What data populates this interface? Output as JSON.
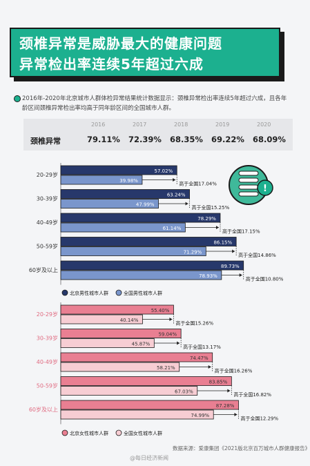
{
  "banner": {
    "line1": "颈椎异常是威胁最大的健康问题",
    "line2": "异常检出率连续5年超过六成"
  },
  "intro": "2016年-2020年北京城市人群体检异常结果统计数据显示：颈椎异常检出率连续5年超过六成，且各年龄区间颈椎异常检出率均高于同年龄区间的全国城市人群。",
  "year_table": {
    "row_label": "颈椎异常",
    "years": [
      "2016",
      "2017",
      "2018",
      "2019",
      "2020"
    ],
    "values": [
      "79.11%",
      "72.39%",
      "68.35%",
      "69.22%",
      "68.09%"
    ]
  },
  "colors": {
    "teal": "#1cb08f",
    "male_bj": "#27386b",
    "male_nat": "#7a96cc",
    "female_bj": "#e97f92",
    "female_nat": "#f7cdd3"
  },
  "source": "数据来源：爱康集团《2021版北京百万城市人群健康报告》",
  "watermark": "@每日经济新闻",
  "chart_data": [
    {
      "type": "bar",
      "orientation": "horizontal",
      "categories": [
        "20-29岁",
        "30-39岁",
        "40-49岁",
        "50-59岁",
        "60岁及以上"
      ],
      "series": [
        {
          "name": "北京男性城市人群",
          "values": [
            57.02,
            63.24,
            78.29,
            86.15,
            89.73
          ],
          "labels": [
            "57.02%",
            "63.24%",
            "78.29%",
            "86.15%",
            "89.73%"
          ]
        },
        {
          "name": "全国男性城市人群",
          "values": [
            39.98,
            47.99,
            61.14,
            71.29,
            78.93
          ],
          "labels": [
            "39.98%",
            "47.99%",
            "61.14%",
            "71.29%",
            "78.93%"
          ]
        }
      ],
      "annotations": [
        "高于全国17.04%",
        "高于全国15.25%",
        "高于全国17.15%",
        "高于全国14.86%",
        "高于全国10.80%"
      ]
    },
    {
      "type": "bar",
      "orientation": "horizontal",
      "categories": [
        "20-29岁",
        "30-39岁",
        "40-49岁",
        "50-59岁",
        "60岁及以上"
      ],
      "series": [
        {
          "name": "北京女性城市人群",
          "values": [
            55.4,
            59.04,
            74.47,
            83.85,
            87.28
          ],
          "labels": [
            "55.40%",
            "59.04%",
            "74.47%",
            "83.85%",
            "87.28%"
          ]
        },
        {
          "name": "全国女性城市人群",
          "values": [
            40.14,
            45.87,
            58.21,
            67.03,
            74.99
          ],
          "labels": [
            "40.14%",
            "45.87%",
            "58.21%",
            "67.03%",
            "74.99%"
          ]
        }
      ],
      "annotations": [
        "高于全国15.26%",
        "高于全国13.17%",
        "高于全国16.26%",
        "高于全国16.82%",
        "高于全国12.29%"
      ]
    }
  ]
}
